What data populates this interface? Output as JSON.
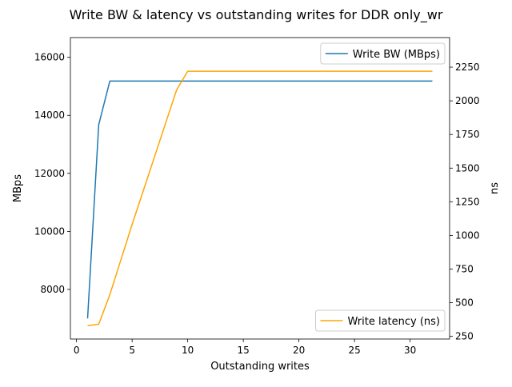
{
  "chart_data": {
    "type": "line",
    "title": "Write BW & latency vs outstanding writes for DDR only_wr",
    "xlabel": "Outstanding writes",
    "ylabel": "MBps",
    "y2label": "ns",
    "xlim": [
      -0.55,
      33.55
    ],
    "ylim": [
      6290,
      16680
    ],
    "y2lim": [
      230,
      2470
    ],
    "xticks": [
      0,
      5,
      10,
      15,
      20,
      25,
      30
    ],
    "yticks": [
      8000,
      10000,
      12000,
      14000,
      16000
    ],
    "y2ticks": [
      250,
      500,
      750,
      1000,
      1250,
      1500,
      1750,
      2000,
      2250
    ],
    "grid": false,
    "series": [
      {
        "name": "Write BW (MBps)",
        "axis": "left",
        "color": "#1f77b4",
        "legend_position": "upper right",
        "x": [
          1,
          2,
          3,
          4,
          5,
          6,
          7,
          8,
          9,
          10,
          11,
          12,
          13,
          14,
          15,
          16,
          17,
          18,
          19,
          20,
          21,
          22,
          23,
          24,
          25,
          26,
          27,
          28,
          29,
          30,
          31,
          32
        ],
        "values": [
          7000,
          13680,
          15180,
          15180,
          15180,
          15180,
          15180,
          15180,
          15180,
          15180,
          15180,
          15180,
          15180,
          15180,
          15180,
          15180,
          15180,
          15180,
          15180,
          15180,
          15180,
          15180,
          15180,
          15180,
          15180,
          15180,
          15180,
          15180,
          15180,
          15180,
          15180,
          15180
        ]
      },
      {
        "name": "Write latency (ns)",
        "axis": "right",
        "color": "#ffa500",
        "legend_position": "lower right",
        "x": [
          1,
          2,
          3,
          4,
          5,
          6,
          7,
          8,
          9,
          10,
          11,
          12,
          13,
          14,
          15,
          16,
          17,
          18,
          19,
          20,
          21,
          22,
          23,
          24,
          25,
          26,
          27,
          28,
          29,
          30,
          31,
          32
        ],
        "values": [
          330,
          340,
          560,
          820,
          1080,
          1330,
          1580,
          1830,
          2080,
          2220,
          2220,
          2220,
          2220,
          2220,
          2220,
          2220,
          2220,
          2220,
          2220,
          2220,
          2220,
          2220,
          2220,
          2220,
          2220,
          2220,
          2220,
          2220,
          2220,
          2220,
          2220,
          2220
        ]
      }
    ]
  }
}
